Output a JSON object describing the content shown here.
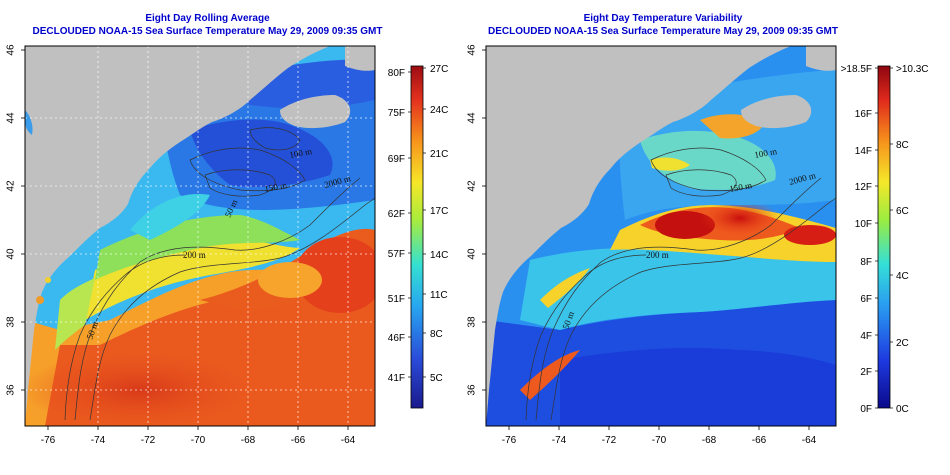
{
  "left_panel": {
    "title_line1": "Eight Day Rolling Average",
    "title_line2": "DECLOUDED NOAA-15 Sea Surface Temperature May 29, 2009 09:35 GMT",
    "x_ticks": [
      "-76",
      "-74",
      "-72",
      "-70",
      "-68",
      "-66",
      "-64"
    ],
    "y_ticks": [
      "36",
      "38",
      "40",
      "42",
      "44",
      "46"
    ],
    "contour_labels": [
      "200 m",
      "2000 m",
      "100 m",
      "50 m",
      "150 m",
      "50 m"
    ],
    "colorbar": {
      "fahrenheit_labels": [
        "80F",
        "75F",
        "69F",
        "62F",
        "57F",
        "51F",
        "46F",
        "41F"
      ],
      "celsius_labels": [
        "27C",
        "24C",
        "21C",
        "17C",
        "14C",
        "11C",
        "8C",
        "5C"
      ],
      "range_c": [
        3,
        27
      ]
    }
  },
  "right_panel": {
    "title_line1": "Eight Day Temperature Variability",
    "title_line2": "DECLOUDED NOAA-15 Sea Surface Temperature May 29, 2009 09:35 GMT",
    "x_ticks": [
      "-76",
      "-74",
      "-72",
      "-70",
      "-68",
      "-66",
      "-64"
    ],
    "y_ticks": [
      "36",
      "38",
      "40",
      "42",
      "44",
      "46"
    ],
    "contour_labels": [
      "200 m",
      "2000 m",
      "100 m",
      "50 m",
      "150 m"
    ],
    "colorbar": {
      "fahrenheit_labels": [
        ">18.5F",
        "16F",
        "14F",
        "12F",
        "10F",
        "8F",
        "6F",
        "4F",
        "2F",
        "0F"
      ],
      "celsius_labels": [
        ">10.3C",
        "8C",
        "6C",
        "4C",
        "2C",
        "0C"
      ],
      "range_c": [
        0,
        10.3
      ]
    }
  },
  "colors": {
    "title": "#0000cc",
    "land": "#c0c0c0",
    "contour": "#333333"
  }
}
